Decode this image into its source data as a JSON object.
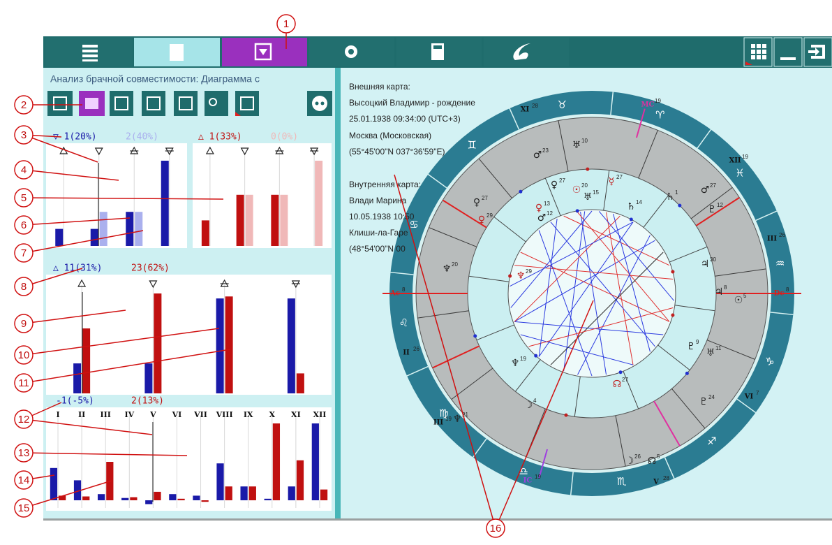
{
  "callouts": [
    "1",
    "2",
    "3",
    "4",
    "5",
    "6",
    "7",
    "8",
    "9",
    "10",
    "11",
    "12",
    "13",
    "14",
    "15",
    "16"
  ],
  "panel_title": "Анализ брачной совместимости: Диаграмма с",
  "charts": [
    {
      "header": [
        "▽ 1(20%)",
        "2(40%)"
      ],
      "ylim": [
        0,
        100
      ],
      "series": [
        {
          "color": "#1a1aa8",
          "values": [
            20,
            20,
            40,
            100
          ]
        },
        {
          "color": "#aab0ee",
          "values": [
            0,
            40,
            40,
            0
          ]
        }
      ]
    },
    {
      "header": [
        "△ 1(33%)",
        "0(0%)"
      ],
      "ylim": [
        0,
        100
      ],
      "series": [
        {
          "color": "#c01010",
          "values": [
            30,
            60,
            60,
            0
          ]
        },
        {
          "color": "#f0b8b8",
          "values": [
            0,
            60,
            60,
            100
          ]
        }
      ]
    },
    {
      "header": [
        "△ 11(31%)",
        "23(62%)"
      ],
      "ylim": [
        0,
        100
      ],
      "series": [
        {
          "color": "#1a1aa8",
          "values": [
            30,
            30,
            95,
            95
          ]
        },
        {
          "color": "#c01010",
          "values": [
            65,
            100,
            97,
            20
          ]
        }
      ]
    },
    {
      "header": [
        "-1(-5%)",
        "2(13%)"
      ],
      "ylim": [
        -10,
        100
      ],
      "categories": [
        "I",
        "II",
        "III",
        "IV",
        "V",
        "VI",
        "VII",
        "VIII",
        "IX",
        "X",
        "XI",
        "XII"
      ],
      "series": [
        {
          "color": "#1a1aa8",
          "values": [
            42,
            26,
            8,
            3,
            -5,
            8,
            6,
            48,
            18,
            2,
            18,
            100
          ]
        },
        {
          "color": "#c01010",
          "values": [
            6,
            5,
            50,
            4,
            11,
            2,
            -2,
            18,
            18,
            100,
            52,
            14
          ]
        }
      ]
    }
  ],
  "info_lines": [
    "Внешняя карта:",
    "Высоцкий Владимир - рождение",
    "25.01.1938 09:34:00 (UTC+3)",
    "Москва (Московская)",
    "(55°45'00\"N 037°36'59\"E)",
    "Внутренняя карта:",
    "Влади Марина",
    "10.05.1938 10:50",
    "Клиши-ла-Гаре",
    "(48°54'00\"N 00"
  ],
  "zodiac": [
    "♈",
    "♉",
    "♊",
    "♋",
    "♌",
    "♍",
    "♎",
    "♏",
    "♐",
    "♑",
    "♒",
    "♓"
  ],
  "cusp_labels": [
    {
      "text": "XI",
      "deg": "28"
    },
    {
      "text": "MC",
      "deg": "19"
    },
    {
      "text": "XII",
      "deg": "19"
    },
    {
      "text": "III",
      "deg": "26"
    },
    {
      "text": "Dc",
      "deg": "8"
    },
    {
      "text": "VI",
      "deg": "7"
    },
    {
      "text": "V",
      "deg": "28"
    },
    {
      "text": "IC",
      "deg": "19"
    },
    {
      "text": "III",
      "deg": "19"
    },
    {
      "text": "II",
      "deg": "26"
    },
    {
      "text": "Ac",
      "deg": "8"
    }
  ],
  "planets": [
    {
      "glyph": "♅",
      "deg": "10"
    },
    {
      "glyph": "♂",
      "deg": "23"
    },
    {
      "glyph": "♄",
      "deg": "1"
    },
    {
      "glyph": "♂",
      "deg": "27"
    },
    {
      "glyph": "♇",
      "deg": "12"
    },
    {
      "glyph": "♃",
      "deg": "30"
    },
    {
      "glyph": "♃",
      "deg": "8"
    },
    {
      "glyph": "☉",
      "deg": "5"
    },
    {
      "glyph": "♅",
      "deg": "11"
    },
    {
      "glyph": "♇",
      "deg": "9"
    },
    {
      "glyph": "♇",
      "deg": "24"
    },
    {
      "glyph": "☽",
      "deg": "26"
    },
    {
      "glyph": "☊",
      "deg": "5"
    },
    {
      "glyph": "♆",
      "deg": "21"
    },
    {
      "glyph": "☽",
      "deg": "4"
    },
    {
      "glyph": "♆",
      "deg": "20"
    },
    {
      "glyph": "♀",
      "deg": "27"
    },
    {
      "glyph": "♀",
      "deg": "29"
    },
    {
      "glyph": "♀",
      "deg": "27"
    },
    {
      "glyph": "☉",
      "deg": "20"
    },
    {
      "glyph": "♅",
      "deg": "15"
    },
    {
      "glyph": "☿",
      "deg": "27"
    },
    {
      "glyph": "♄",
      "deg": "14"
    },
    {
      "glyph": "♀",
      "deg": "13"
    },
    {
      "glyph": "♂",
      "deg": "12"
    },
    {
      "glyph": "♆",
      "deg": "29"
    },
    {
      "glyph": "♆",
      "deg": "19"
    },
    {
      "glyph": "☊",
      "deg": "27"
    }
  ]
}
